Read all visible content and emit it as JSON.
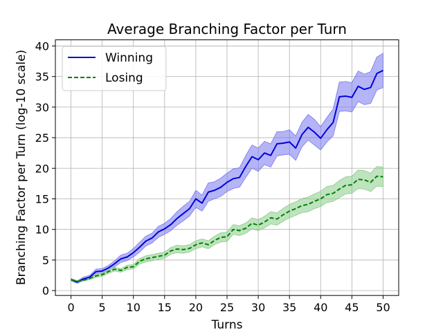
{
  "chart_data": {
    "type": "line",
    "title": "Average Branching Factor per Turn",
    "xlabel": "Turns",
    "ylabel": "Branching Factor per Turn (log-10 scale)",
    "xlim": [
      -2.5,
      52.5
    ],
    "ylim": [
      -0.8,
      41
    ],
    "xticks": [
      0,
      5,
      10,
      15,
      20,
      25,
      30,
      35,
      40,
      45,
      50
    ],
    "yticks": [
      0,
      5,
      10,
      15,
      20,
      25,
      30,
      35,
      40
    ],
    "grid": true,
    "legend_position": "top-left",
    "x": [
      0,
      1,
      2,
      3,
      4,
      5,
      6,
      7,
      8,
      9,
      10,
      11,
      12,
      13,
      14,
      15,
      16,
      17,
      18,
      19,
      20,
      21,
      22,
      23,
      24,
      25,
      26,
      27,
      28,
      29,
      30,
      31,
      32,
      33,
      34,
      35,
      36,
      37,
      38,
      39,
      40,
      41,
      42,
      43,
      44,
      45,
      46,
      47,
      48,
      49,
      50
    ],
    "series": [
      {
        "name": "Winning",
        "color": "#0000dd",
        "band_color": "#7777ee",
        "line_style": "solid",
        "values": [
          1.8,
          1.4,
          1.9,
          2.2,
          3.1,
          3.2,
          3.7,
          4.4,
          5.2,
          5.5,
          6.2,
          7.1,
          8.1,
          8.6,
          9.6,
          10.1,
          10.8,
          11.8,
          12.6,
          13.4,
          15.0,
          14.3,
          16.1,
          16.4,
          16.9,
          17.7,
          18.3,
          18.5,
          20.3,
          21.9,
          21.4,
          22.5,
          22.1,
          24.0,
          24.1,
          24.3,
          23.3,
          25.5,
          26.7,
          25.9,
          24.9,
          26.3,
          27.5,
          31.7,
          31.8,
          31.6,
          33.4,
          32.9,
          33.2,
          35.5,
          36.0
        ],
        "lower": [
          1.6,
          1.2,
          1.6,
          1.9,
          2.7,
          2.8,
          3.3,
          3.9,
          4.6,
          4.9,
          5.5,
          6.3,
          7.3,
          7.8,
          8.7,
          9.2,
          9.8,
          10.7,
          11.4,
          12.2,
          13.6,
          13.0,
          14.6,
          15.0,
          15.4,
          16.2,
          16.7,
          16.9,
          18.5,
          20.0,
          19.5,
          20.6,
          20.2,
          22.0,
          22.2,
          22.3,
          21.3,
          23.5,
          24.6,
          23.8,
          23.0,
          24.3,
          25.3,
          29.3,
          29.4,
          29.2,
          30.9,
          30.4,
          30.6,
          32.8,
          33.2
        ],
        "upper": [
          2.0,
          1.6,
          2.2,
          2.5,
          3.5,
          3.6,
          4.1,
          4.9,
          5.8,
          6.1,
          6.9,
          7.9,
          8.9,
          9.4,
          10.5,
          11.0,
          11.8,
          12.9,
          13.8,
          14.6,
          16.4,
          15.6,
          17.6,
          17.8,
          18.4,
          19.2,
          19.9,
          20.1,
          22.1,
          23.8,
          23.3,
          24.4,
          24.0,
          26.0,
          26.0,
          26.3,
          25.3,
          27.5,
          28.8,
          28.0,
          26.8,
          28.3,
          29.7,
          34.1,
          34.2,
          34.0,
          35.9,
          35.4,
          35.8,
          38.2,
          38.8
        ]
      },
      {
        "name": "Losing",
        "color": "#008000",
        "band_color": "#88cc88",
        "line_style": "dashed",
        "values": [
          1.8,
          1.5,
          1.7,
          2.0,
          2.4,
          2.6,
          3.1,
          3.5,
          3.3,
          3.8,
          3.9,
          4.8,
          5.2,
          5.4,
          5.6,
          5.8,
          6.5,
          6.8,
          6.7,
          6.9,
          7.5,
          7.8,
          7.5,
          8.2,
          8.7,
          8.8,
          10.0,
          9.8,
          10.2,
          11.0,
          10.7,
          11.2,
          11.9,
          11.7,
          12.4,
          13.0,
          13.4,
          13.9,
          14.1,
          14.6,
          15.0,
          15.7,
          15.9,
          16.6,
          17.2,
          17.3,
          18.2,
          18.1,
          17.7,
          18.7,
          18.6
        ],
        "lower": [
          1.65,
          1.35,
          1.55,
          1.8,
          2.15,
          2.35,
          2.8,
          3.2,
          3.0,
          3.45,
          3.55,
          4.35,
          4.7,
          4.9,
          5.1,
          5.3,
          5.95,
          6.2,
          6.1,
          6.3,
          6.85,
          7.15,
          6.85,
          7.5,
          7.95,
          8.05,
          9.2,
          9.0,
          9.35,
          10.1,
          9.8,
          10.25,
          10.9,
          10.7,
          11.35,
          11.9,
          12.3,
          12.75,
          12.9,
          13.4,
          13.75,
          14.4,
          14.6,
          15.2,
          15.8,
          15.9,
          16.7,
          16.6,
          16.2,
          17.1,
          17.0
        ],
        "upper": [
          1.95,
          1.65,
          1.85,
          2.2,
          2.65,
          2.85,
          3.4,
          3.8,
          3.6,
          4.15,
          4.25,
          5.25,
          5.7,
          5.9,
          6.1,
          6.3,
          7.05,
          7.4,
          7.3,
          7.5,
          8.15,
          8.45,
          8.15,
          8.9,
          9.45,
          9.55,
          10.8,
          10.6,
          11.05,
          11.9,
          11.6,
          12.15,
          12.9,
          12.7,
          13.45,
          14.1,
          14.5,
          15.05,
          15.3,
          15.8,
          16.25,
          17.0,
          17.2,
          18.0,
          18.6,
          18.7,
          19.7,
          19.6,
          19.2,
          20.3,
          20.2
        ]
      }
    ]
  }
}
